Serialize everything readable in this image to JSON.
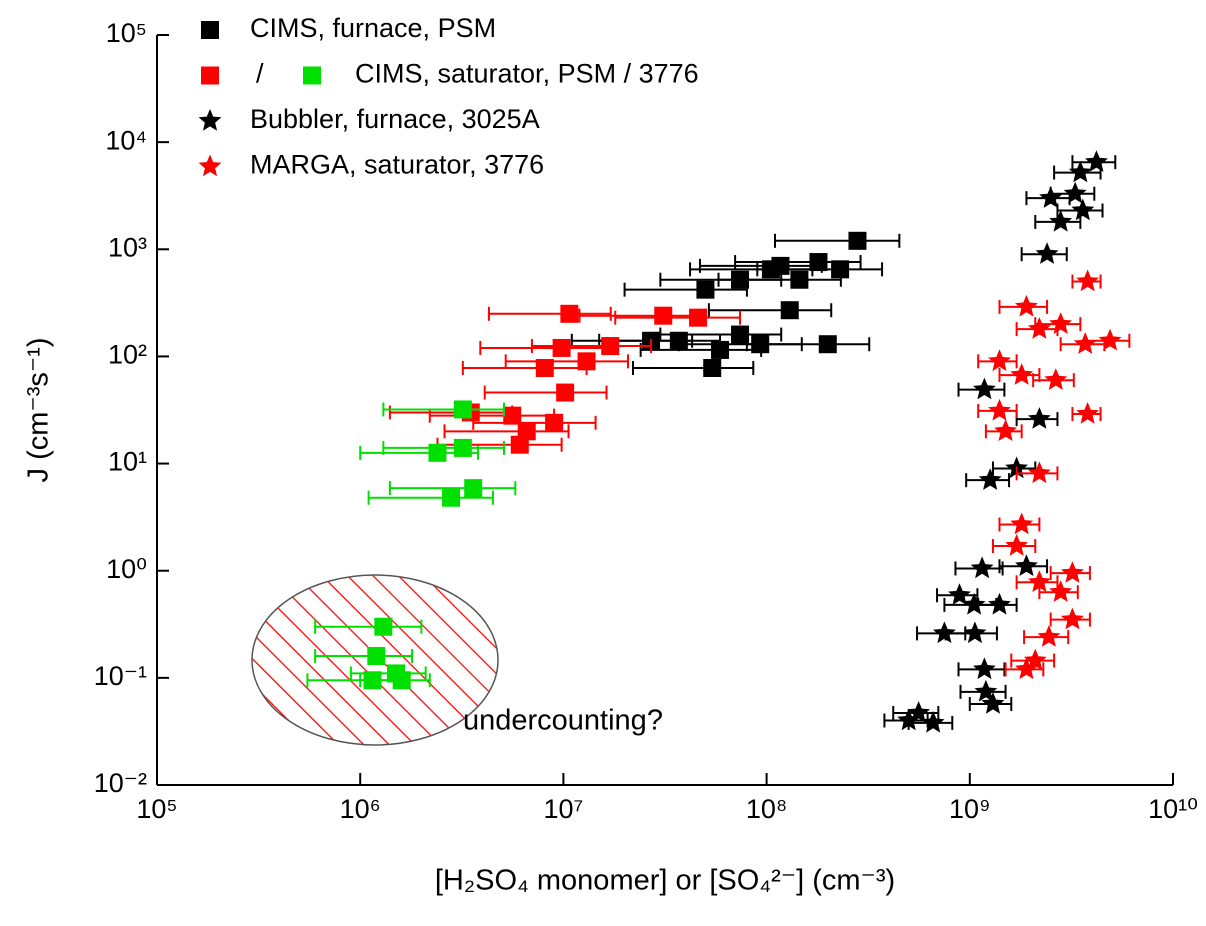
{
  "chart_data": {
    "type": "scatter",
    "x_label": "[H₂SO₄ monomer] or [SO₄²⁻] (cm⁻³)",
    "y_label": "J (cm⁻³s⁻¹)",
    "x_scale": "log",
    "y_scale": "log",
    "xlim": [
      100000,
      10000000000
    ],
    "ylim": [
      0.01,
      100000
    ],
    "xticks": [
      {
        "value": 100000,
        "label": "10⁵"
      },
      {
        "value": 1000000,
        "label": "10⁶"
      },
      {
        "value": 10000000,
        "label": "10⁷"
      },
      {
        "value": 100000000,
        "label": "10⁸"
      },
      {
        "value": 1000000000,
        "label": "10⁹"
      },
      {
        "value": 10000000000,
        "label": "10¹⁰"
      }
    ],
    "yticks": [
      {
        "value": 0.01,
        "label": "10⁻²"
      },
      {
        "value": 0.1,
        "label": "10⁻¹"
      },
      {
        "value": 1,
        "label": "10⁰"
      },
      {
        "value": 10,
        "label": "10¹"
      },
      {
        "value": 100,
        "label": "10²"
      },
      {
        "value": 1000,
        "label": "10³"
      },
      {
        "value": 10000,
        "label": "10⁴"
      },
      {
        "value": 100000,
        "label": "10⁵"
      }
    ],
    "annotation": "undercounting?",
    "legend": [
      {
        "series": [
          0
        ],
        "label": "CIMS, furnace, PSM"
      },
      {
        "series": [
          1,
          2
        ],
        "separator": "/",
        "label": "CIMS, saturator, PSM / 3776"
      },
      {
        "series": [
          3
        ],
        "label": "Bubbler, furnace, 3025A"
      },
      {
        "series": [
          4
        ],
        "label": "MARGA, saturator, 3776"
      }
    ],
    "series": [
      {
        "marker": "square",
        "color": "#000000",
        "x": [
          280000000,
          180000000,
          105000000,
          74000000,
          145000000,
          50000000,
          130000000,
          74000000,
          37000000,
          27000000,
          93000000,
          54000000,
          59000000,
          200000000,
          230000000,
          117000000
        ],
        "y": [
          1200,
          760,
          650,
          520,
          520,
          420,
          270,
          160,
          140,
          140,
          130,
          78,
          115,
          130,
          650,
          700
        ],
        "xerr": [
          170000000,
          110000000,
          63000000,
          44000000,
          87000000,
          30000000,
          78000000,
          44000000,
          22000000,
          16000000,
          56000000,
          32000000,
          35000000,
          120000000,
          140000000,
          70000000
        ]
      },
      {
        "marker": "square",
        "color": "#ff0000",
        "x": [
          10700000,
          31000000,
          46000000,
          17000000,
          9800000,
          13000000,
          8100000,
          10200000,
          5600000,
          9000000,
          6600000,
          6100000,
          3500000
        ],
        "y": [
          250,
          240,
          230,
          125,
          120,
          90,
          78,
          46,
          28,
          24,
          20,
          15,
          30
        ],
        "xerr": [
          6400000,
          19000000,
          28000000,
          10000000,
          5900000,
          7800000,
          4900000,
          6100000,
          3400000,
          5400000,
          4000000,
          3700000,
          2100000
        ]
      },
      {
        "marker": "square",
        "color": "#00e000",
        "x": [
          3200000,
          3200000,
          2400000,
          3600000,
          2800000,
          1300000,
          1200000,
          1150000,
          1500000,
          1600000
        ],
        "y": [
          32,
          14,
          12.6,
          5.9,
          4.8,
          0.3,
          0.16,
          0.095,
          0.11,
          0.095
        ],
        "xerr": [
          1900000,
          1900000,
          1400000,
          2200000,
          1700000,
          700000,
          600000,
          600000,
          600000,
          600000
        ]
      },
      {
        "marker": "star",
        "color": "#000000",
        "x": [
          4200000000,
          3500000000,
          3300000000,
          2500000000,
          3600000000,
          2800000000,
          2400000000,
          1180000000,
          2200000000,
          1260000000,
          1700000000,
          1150000000,
          1900000000,
          890000000,
          1050000000,
          1400000000,
          750000000,
          1060000000,
          1180000000,
          1200000000,
          1300000000,
          560000000,
          660000000,
          500000000
        ],
        "y": [
          6500,
          5200,
          3300,
          3000,
          2300,
          1800,
          900,
          49,
          26,
          7,
          9,
          1.05,
          1.1,
          0.59,
          0.48,
          0.48,
          0.26,
          0.26,
          0.12,
          0.074,
          0.057,
          0.047,
          0.038,
          0.04
        ],
        "xerr": [
          1000000000,
          900000000,
          800000000,
          600000000,
          900000000,
          700000000,
          600000000,
          300000000,
          500000000,
          300000000,
          400000000,
          300000000,
          500000000,
          200000000,
          300000000,
          300000000,
          200000000,
          300000000,
          300000000,
          300000000,
          300000000,
          140000000,
          160000000,
          120000000
        ]
      },
      {
        "marker": "star",
        "color": "#ff0000",
        "x": [
          3800000000,
          4900000000,
          3700000000,
          1900000000,
          2200000000,
          2800000000,
          1400000000,
          1800000000,
          2650000000,
          3800000000,
          1400000000,
          1500000000,
          2200000000,
          1800000000,
          1700000000,
          3200000000,
          2800000000,
          3200000000,
          2450000000,
          2100000000,
          1900000000,
          2200000000
        ],
        "y": [
          500,
          140,
          130,
          290,
          180,
          200,
          90,
          67,
          60,
          29,
          31,
          20,
          8.1,
          2.7,
          1.7,
          0.95,
          0.63,
          0.35,
          0.24,
          0.145,
          0.12,
          0.78
        ],
        "xerr": [
          600000000,
          1200000000,
          900000000,
          500000000,
          500000000,
          700000000,
          300000000,
          400000000,
          600000000,
          600000000,
          300000000,
          300000000,
          500000000,
          400000000,
          400000000,
          700000000,
          600000000,
          700000000,
          600000000,
          500000000,
          400000000,
          500000000
        ]
      }
    ]
  }
}
